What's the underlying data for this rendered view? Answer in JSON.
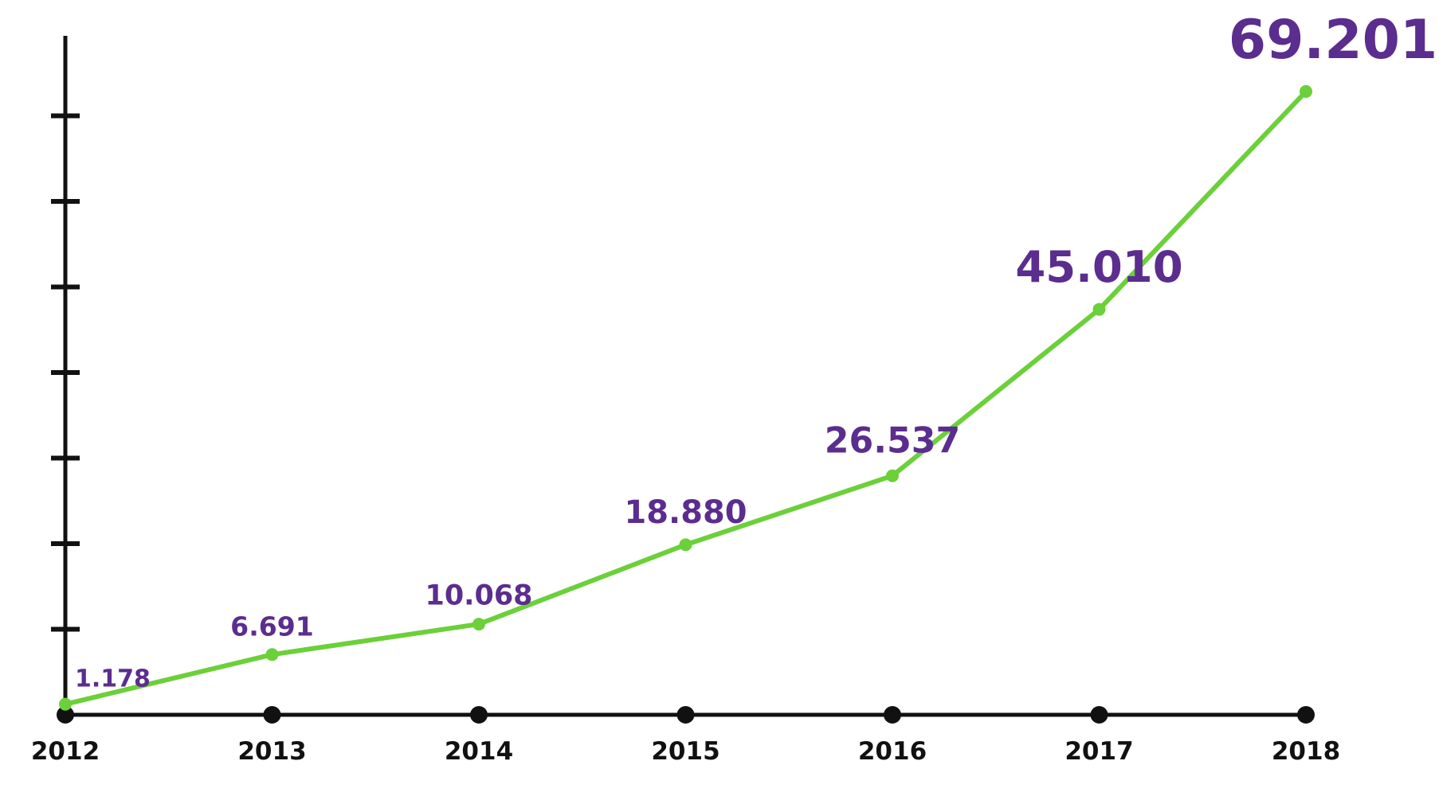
{
  "chart_data": {
    "type": "line",
    "title": "",
    "xlabel": "",
    "ylabel": "",
    "categories": [
      "2012",
      "2013",
      "2014",
      "2015",
      "2016",
      "2017",
      "2018"
    ],
    "series": [
      {
        "values": [
          1178,
          6691,
          10068,
          18880,
          26537,
          45010,
          69201
        ],
        "data_labels": [
          "1.178",
          "6.691",
          "10.068",
          "18.880",
          "26.537",
          "45.010",
          "69.201"
        ]
      }
    ],
    "ylim": [
      0,
      76000
    ],
    "y_tick_count": 7,
    "y_tick_labels_shown": false,
    "grid": false,
    "legend": "none",
    "colors": {
      "line": "#6bd03a",
      "labels": "#5b2d8e",
      "axis": "#111111"
    }
  }
}
